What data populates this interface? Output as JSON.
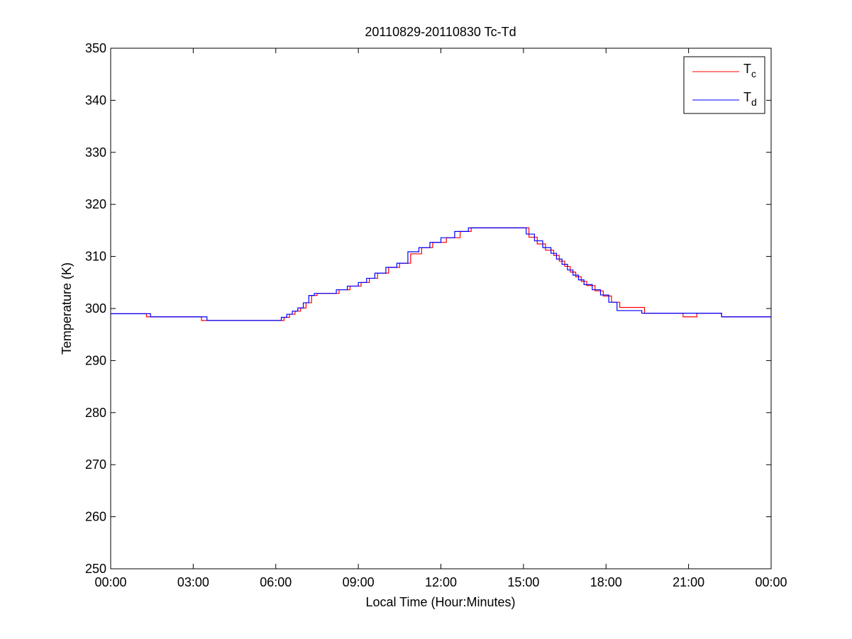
{
  "chart_data": {
    "type": "line",
    "title": "20110829-20110830 Tc-Td",
    "xlabel": "Local Time (Hour:Minutes)",
    "ylabel": "Temperature (K)",
    "xlim": [
      0,
      24
    ],
    "ylim": [
      250,
      350
    ],
    "xticks": [
      0,
      3,
      6,
      9,
      12,
      15,
      18,
      21,
      24
    ],
    "xtick_labels": [
      "00:00",
      "03:00",
      "06:00",
      "09:00",
      "12:00",
      "15:00",
      "18:00",
      "21:00",
      "00:00"
    ],
    "yticks": [
      250,
      260,
      270,
      280,
      290,
      300,
      310,
      320,
      330,
      340,
      350
    ],
    "ytick_labels": [
      "250",
      "260",
      "270",
      "280",
      "290",
      "300",
      "310",
      "320",
      "330",
      "340",
      "350"
    ],
    "grid": false,
    "legend_position": "top-right",
    "series": [
      {
        "name": "Tc",
        "name_main": "T",
        "name_sub": "c",
        "color": "#ff0000",
        "x": [
          0,
          1.3,
          1.4,
          3.3,
          3.4,
          6.1,
          6.3,
          6.5,
          6.7,
          6.9,
          7.1,
          7.3,
          7.5,
          7.9,
          8.3,
          8.7,
          9.1,
          9.4,
          9.7,
          10.1,
          10.5,
          10.9,
          11.3,
          11.7,
          12.2,
          12.7,
          13.1,
          13.5,
          14.0,
          14.5,
          14.9,
          15.2,
          15.5,
          15.8,
          16.1,
          16.3,
          16.5,
          16.7,
          16.9,
          17.1,
          17.3,
          17.6,
          17.9,
          18.2,
          18.5,
          19.4,
          20.8,
          21.3,
          22.2,
          24
        ],
        "y": [
          299.0,
          298.4,
          298.4,
          297.7,
          297.7,
          297.7,
          298.3,
          298.9,
          299.5,
          300.1,
          301.1,
          302.5,
          302.9,
          302.9,
          303.6,
          304.3,
          305.0,
          305.8,
          306.8,
          307.9,
          308.7,
          310.5,
          311.7,
          312.7,
          313.6,
          314.8,
          315.5,
          315.5,
          315.5,
          315.5,
          315.5,
          313.7,
          312.4,
          311.2,
          310.2,
          309.1,
          308.1,
          307.0,
          306.1,
          305.2,
          304.4,
          303.4,
          302.4,
          301.2,
          300.2,
          299.1,
          298.4,
          299.1,
          298.4,
          298.4
        ]
      },
      {
        "name": "Td",
        "name_main": "T",
        "name_sub": "d",
        "color": "#0000ff",
        "x": [
          0,
          1.45,
          3.2,
          3.5,
          6.0,
          6.2,
          6.4,
          6.6,
          6.8,
          7.0,
          7.2,
          7.4,
          7.8,
          8.2,
          8.6,
          9.0,
          9.3,
          9.6,
          10.0,
          10.4,
          10.8,
          11.2,
          11.6,
          12.0,
          12.5,
          13.0,
          13.5,
          14.0,
          14.5,
          14.8,
          15.1,
          15.4,
          15.7,
          16.0,
          16.2,
          16.4,
          16.6,
          16.8,
          17.0,
          17.2,
          17.5,
          17.8,
          18.1,
          18.4,
          19.3,
          20.7,
          21.2,
          22.2,
          24
        ],
        "y": [
          299.0,
          298.4,
          298.4,
          297.7,
          297.7,
          298.3,
          298.9,
          299.5,
          300.1,
          301.1,
          302.5,
          302.9,
          302.9,
          303.6,
          304.3,
          305.0,
          305.8,
          306.8,
          307.9,
          308.7,
          310.9,
          311.7,
          312.7,
          313.6,
          314.8,
          315.5,
          315.5,
          315.5,
          315.5,
          315.5,
          314.3,
          313.0,
          311.7,
          310.6,
          309.5,
          308.5,
          307.4,
          306.4,
          305.5,
          304.6,
          303.6,
          302.6,
          301.2,
          299.6,
          299.1,
          299.1,
          299.1,
          298.4,
          298.4
        ]
      }
    ]
  }
}
